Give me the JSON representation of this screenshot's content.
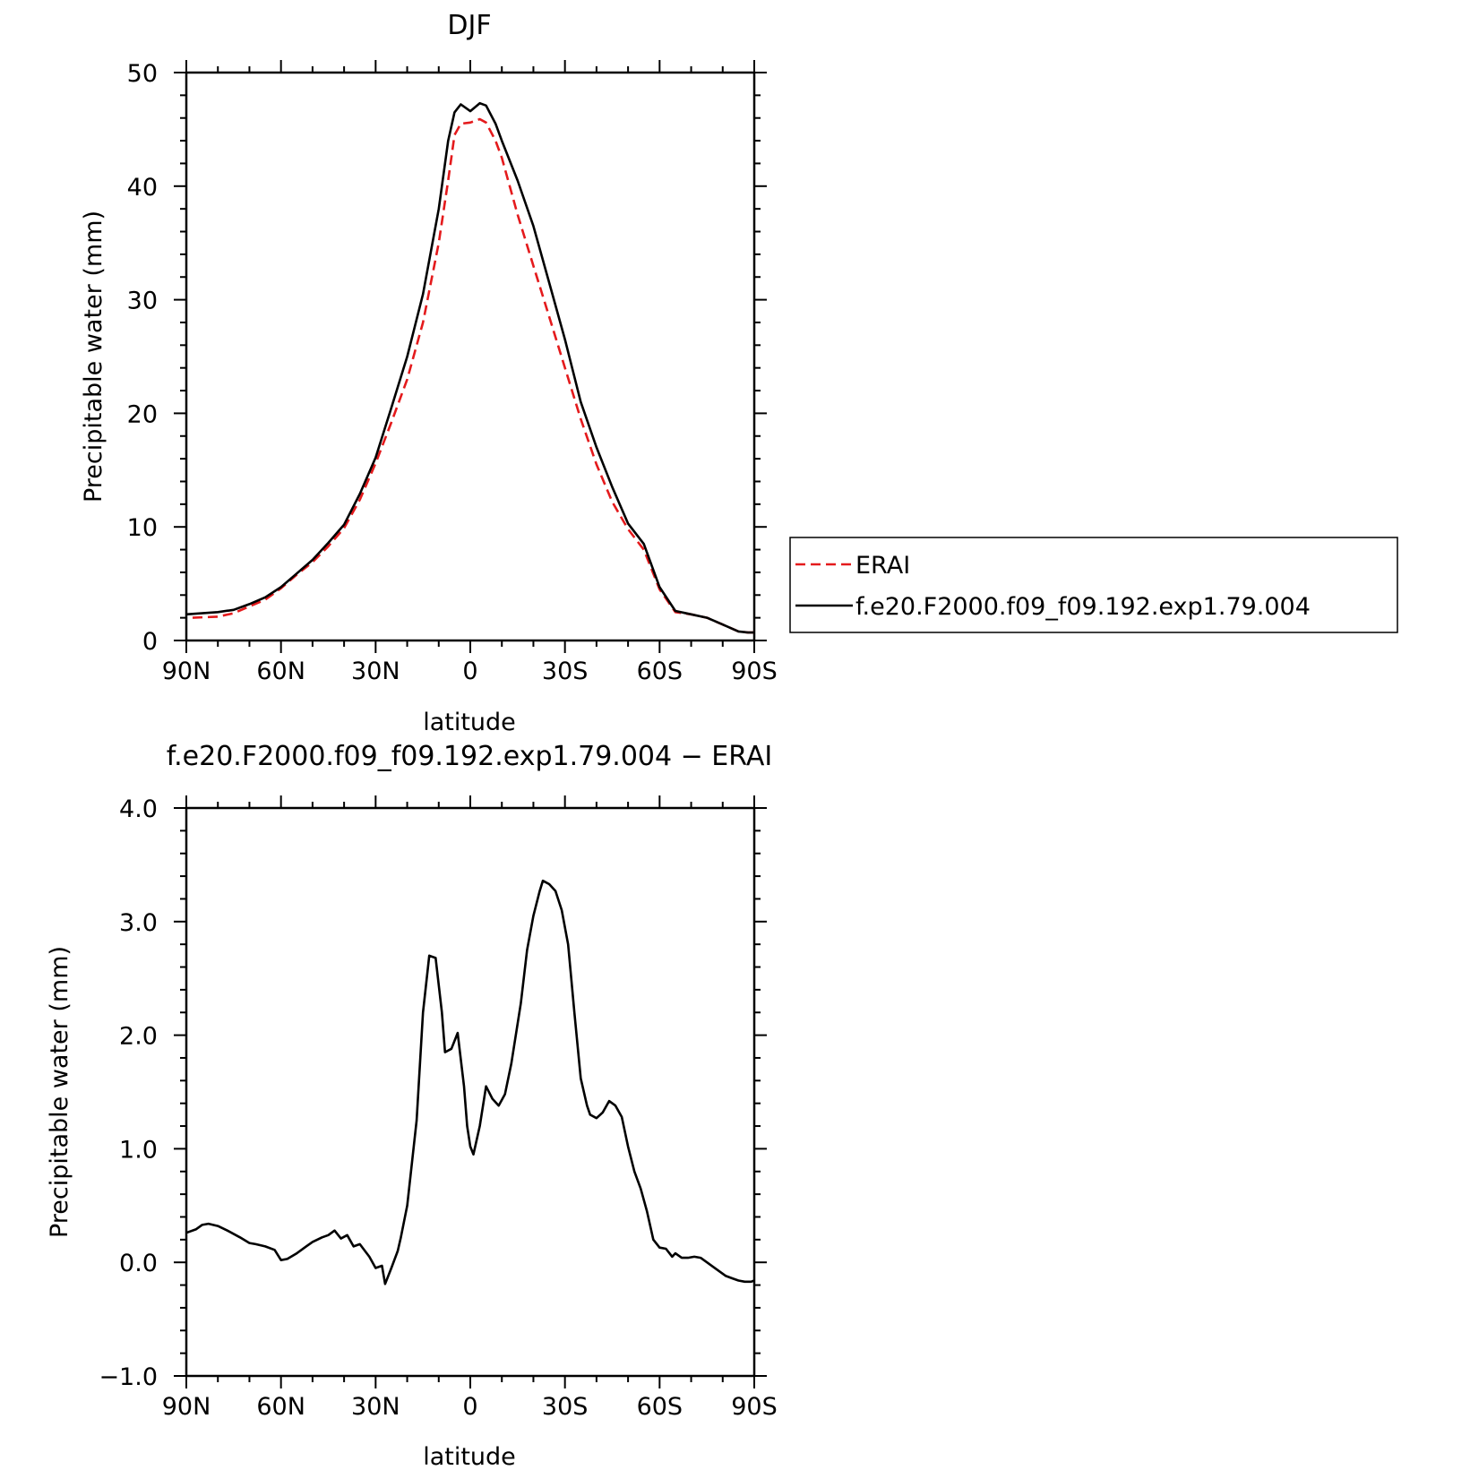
{
  "chart_data": [
    {
      "type": "line",
      "title": "DJF",
      "xlabel": "latitude",
      "ylabel": "Precipitable water (mm)",
      "xlim": [
        90,
        -90
      ],
      "ylim": [
        0,
        50
      ],
      "x_tick_labels": [
        "90N",
        "60N",
        "30N",
        "0",
        "30S",
        "60S",
        "90S"
      ],
      "y_tick_labels": [
        "0",
        "10",
        "20",
        "30",
        "40",
        "50"
      ],
      "legend_position": "right",
      "legend": [
        "ERAI",
        "f.e20.F2000.f09_f09.192.exp1.79.004"
      ],
      "series": [
        {
          "name": "ERAI",
          "color": "#e41a1c",
          "style": "dashed",
          "x": [
            88,
            80,
            75,
            70,
            65,
            60,
            55,
            50,
            45,
            40,
            35,
            30,
            25,
            20,
            15,
            10,
            7,
            5,
            3,
            0,
            -3,
            -5,
            -8,
            -10,
            -15,
            -20,
            -25,
            -30,
            -35,
            -40,
            -45,
            -50,
            -55,
            -60,
            -65,
            -70,
            -75,
            -80,
            -85,
            -88,
            -90
          ],
          "y": [
            2.0,
            2.1,
            2.4,
            3.0,
            3.6,
            4.6,
            5.8,
            6.9,
            8.3,
            9.9,
            12.4,
            15.6,
            19.2,
            23.0,
            28.0,
            35.0,
            40.5,
            44.5,
            45.5,
            45.6,
            45.9,
            45.6,
            44.0,
            42.5,
            37.5,
            33.0,
            28.5,
            24.0,
            19.5,
            15.5,
            12.2,
            9.8,
            8.0,
            4.5,
            2.5,
            2.3,
            2.0,
            1.4,
            0.8,
            0.7,
            0.7
          ]
        },
        {
          "name": "f.e20.F2000.f09_f09.192.exp1.79.004",
          "color": "#000000",
          "style": "solid",
          "x": [
            90,
            85,
            80,
            75,
            70,
            65,
            60,
            55,
            50,
            45,
            40,
            35,
            30,
            25,
            20,
            15,
            10,
            7,
            5,
            3,
            0,
            -3,
            -5,
            -8,
            -10,
            -15,
            -20,
            -25,
            -30,
            -35,
            -40,
            -45,
            -50,
            -55,
            -60,
            -65,
            -70,
            -75,
            -80,
            -85,
            -88,
            -90
          ],
          "y": [
            2.3,
            2.4,
            2.5,
            2.7,
            3.2,
            3.8,
            4.7,
            5.9,
            7.1,
            8.6,
            10.2,
            12.9,
            16.1,
            20.5,
            25.0,
            30.5,
            38.0,
            44.0,
            46.5,
            47.2,
            46.6,
            47.3,
            47.1,
            45.5,
            44.0,
            40.5,
            36.5,
            31.5,
            26.5,
            21.0,
            17.0,
            13.5,
            10.3,
            8.5,
            4.7,
            2.6,
            2.3,
            2.0,
            1.4,
            0.8,
            0.7,
            0.7
          ]
        }
      ]
    },
    {
      "type": "line",
      "title": "f.e20.F2000.f09_f09.192.exp1.79.004 − ERAI",
      "xlabel": "latitude",
      "ylabel": "Precipitable water (mm)",
      "xlim": [
        90,
        -90
      ],
      "ylim": [
        -1.0,
        4.0
      ],
      "x_tick_labels": [
        "90N",
        "60N",
        "30N",
        "0",
        "30S",
        "60S",
        "90S"
      ],
      "y_tick_labels": [
        "−1.0",
        "0.0",
        "1.0",
        "2.0",
        "3.0",
        "4.0"
      ],
      "series": [
        {
          "color": "#000000",
          "style": "solid",
          "x": [
            90,
            87,
            85,
            83,
            80,
            77,
            73,
            70,
            68,
            65,
            62,
            60,
            58,
            55,
            52,
            50,
            47,
            45,
            43,
            41,
            39,
            37,
            35,
            32,
            30,
            28,
            27,
            25,
            23,
            22,
            20,
            17,
            15,
            13,
            11,
            9,
            8,
            6,
            4,
            2,
            1,
            0,
            -1,
            -3,
            -5,
            -7,
            -9,
            -11,
            -13,
            -15,
            -16,
            -18,
            -20,
            -22,
            -23,
            -25,
            -27,
            -29,
            -31,
            -33,
            -35,
            -37,
            -38,
            -40,
            -42,
            -44,
            -46,
            -48,
            -50,
            -52,
            -54,
            -56,
            -58,
            -60,
            -62,
            -64,
            -65,
            -67,
            -69,
            -71,
            -73,
            -75,
            -78,
            -81,
            -83,
            -85,
            -87,
            -89,
            -90
          ],
          "y": [
            0.26,
            0.29,
            0.33,
            0.34,
            0.32,
            0.28,
            0.22,
            0.17,
            0.16,
            0.14,
            0.11,
            0.02,
            0.03,
            0.08,
            0.14,
            0.18,
            0.22,
            0.24,
            0.28,
            0.21,
            0.24,
            0.14,
            0.16,
            0.05,
            -0.05,
            -0.03,
            -0.19,
            -0.05,
            0.1,
            0.22,
            0.5,
            1.25,
            2.2,
            2.7,
            2.68,
            2.2,
            1.85,
            1.88,
            2.02,
            1.55,
            1.2,
            1.02,
            0.95,
            1.2,
            1.55,
            1.44,
            1.38,
            1.48,
            1.75,
            2.1,
            2.28,
            2.75,
            3.05,
            3.27,
            3.36,
            3.33,
            3.27,
            3.1,
            2.8,
            2.2,
            1.62,
            1.38,
            1.3,
            1.27,
            1.32,
            1.42,
            1.38,
            1.28,
            1.02,
            0.8,
            0.65,
            0.45,
            0.2,
            0.13,
            0.12,
            0.05,
            0.08,
            0.04,
            0.04,
            0.05,
            0.04,
            0.0,
            -0.06,
            -0.12,
            -0.14,
            -0.16,
            -0.17,
            -0.17,
            -0.16
          ]
        }
      ]
    }
  ]
}
